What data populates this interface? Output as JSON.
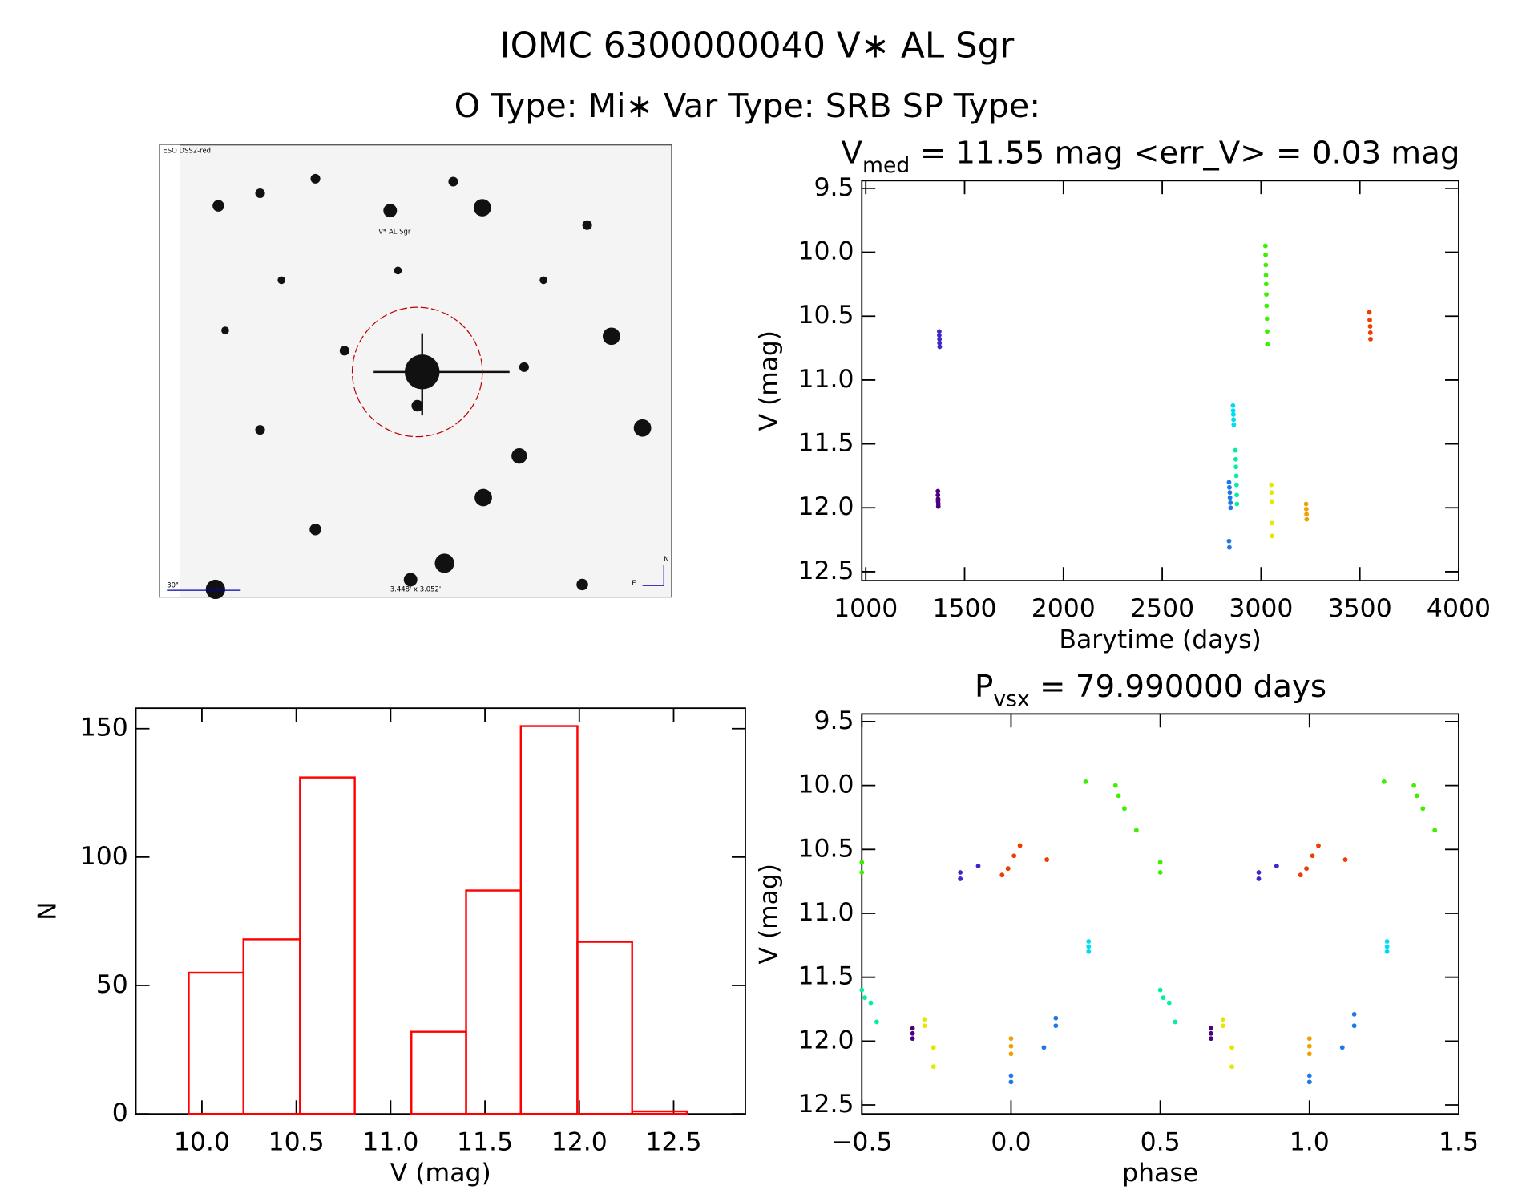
{
  "header": {
    "title": "IOMC 6300000040   V∗ AL Sgr",
    "subtitle": "O Type: Mi∗  Var Type: SRB  SP Type:"
  },
  "image": {
    "survey": "ESO DSS2-red",
    "target": "V* AL Sgr",
    "scale": "30\"",
    "fov": "3.448' x 3.052'",
    "north": "N",
    "east": "E"
  },
  "chart_data": [
    {
      "type": "histogram",
      "xlabel": "V (mag)",
      "ylabel": "N",
      "color": "#ff0000",
      "bins": [
        9.93,
        10.22,
        10.52,
        10.81,
        11.11,
        11.4,
        11.69,
        11.99,
        12.28,
        12.57
      ],
      "values": [
        55,
        68,
        131,
        0,
        32,
        87,
        151,
        67,
        1
      ],
      "xlim": [
        9.65,
        12.88
      ],
      "ylim": [
        0,
        158
      ],
      "xticks": [
        {
          "value": 10,
          "label": "10.0"
        },
        10.5,
        {
          "value": 11,
          "label": "11.0"
        },
        11.5,
        {
          "value": 12,
          "label": "12.0"
        },
        12.5
      ],
      "yticks": [
        0,
        50,
        100,
        150
      ]
    },
    {
      "type": "scatter",
      "title": [
        "V",
        "med",
        " = 11.55 mag <err_V> = 0.03 mag"
      ],
      "xlabel": "Barytime (days)",
      "ylabel": "V (mag)",
      "xlim": [
        980,
        4000
      ],
      "ylim": [
        12.57,
        9.44
      ],
      "xticks": [
        1000,
        1500,
        2000,
        2500,
        3000,
        3500,
        4000
      ],
      "yticks": [
        9.5,
        {
          "value": 10,
          "label": "10.0"
        },
        10.5,
        {
          "value": 11,
          "label": "11.0"
        },
        11.5,
        {
          "value": 12,
          "label": "12.0"
        },
        12.5
      ],
      "series": [
        {
          "color": "#4b0082",
          "x": [
            1365,
            1365,
            1366,
            1366,
            1367,
            1367
          ],
          "values": [
            11.87,
            11.9,
            11.93,
            11.95,
            11.97,
            11.99
          ]
        },
        {
          "color": "#3c28c8",
          "x": [
            1372,
            1372,
            1373,
            1373,
            1374
          ],
          "values": [
            10.62,
            10.65,
            10.68,
            10.71,
            10.74
          ]
        },
        {
          "color": "#1e78e6",
          "x": [
            2838,
            2840,
            2842,
            2843,
            2845,
            2846,
            2838,
            2840
          ],
          "values": [
            11.8,
            11.84,
            11.88,
            11.92,
            11.96,
            12.0,
            12.26,
            12.31
          ]
        },
        {
          "color": "#00dcf0",
          "x": [
            2858,
            2859,
            2860,
            2861,
            2862
          ],
          "values": [
            11.2,
            11.24,
            11.27,
            11.31,
            11.35
          ]
        },
        {
          "color": "#00f0a0",
          "x": [
            2870,
            2872,
            2873,
            2875,
            2876,
            2877,
            2878
          ],
          "values": [
            11.55,
            11.62,
            11.68,
            11.75,
            11.82,
            11.9,
            11.97
          ]
        },
        {
          "color": "#3cf000",
          "x": [
            3022,
            3023,
            3024,
            3025,
            3026,
            3027,
            3028,
            3030,
            3031,
            3032
          ],
          "values": [
            9.95,
            10.02,
            10.1,
            10.18,
            10.25,
            10.33,
            10.42,
            10.52,
            10.62,
            10.72
          ]
        },
        {
          "color": "#e6e600",
          "x": [
            3052,
            3053,
            3054,
            3055,
            3056
          ],
          "values": [
            11.82,
            11.88,
            11.95,
            12.12,
            12.22
          ]
        },
        {
          "color": "#f0a000",
          "x": [
            3228,
            3229,
            3230,
            3231
          ],
          "values": [
            11.97,
            12.01,
            12.05,
            12.09
          ]
        },
        {
          "color": "#f03c00",
          "x": [
            3548,
            3550,
            3552,
            3553,
            3554
          ],
          "values": [
            10.47,
            10.53,
            10.58,
            10.63,
            10.68
          ]
        }
      ]
    },
    {
      "type": "scatter",
      "title": [
        "P",
        "vsx",
        " = 79.990000 days"
      ],
      "xlabel": "phase",
      "ylabel": "V (mag)",
      "xlim": [
        -0.5,
        1.5
      ],
      "ylim": [
        12.57,
        9.44
      ],
      "xticks": [
        {
          "value": -0.5,
          "label": "−0.5"
        },
        {
          "value": 0,
          "label": "0.0"
        },
        0.5,
        {
          "value": 1,
          "label": "1.0"
        },
        1.5
      ],
      "yticks": [
        9.5,
        {
          "value": 10,
          "label": "10.0"
        },
        10.5,
        {
          "value": 11,
          "label": "11.0"
        },
        11.5,
        {
          "value": 12,
          "label": "12.0"
        },
        12.5
      ],
      "series": [
        {
          "color": "#4b0082",
          "x": [
            -0.33,
            -0.33,
            -0.33,
            0.67,
            0.67,
            0.67
          ],
          "values": [
            11.9,
            11.94,
            11.98,
            11.9,
            11.94,
            11.98
          ]
        },
        {
          "color": "#3c28c8",
          "x": [
            -0.17,
            -0.17,
            -0.11,
            0.83,
            0.83,
            0.89
          ],
          "values": [
            10.68,
            10.73,
            10.63,
            10.68,
            10.73,
            10.63
          ]
        },
        {
          "color": "#1e78e6",
          "x": [
            0.0,
            0.0,
            0.11,
            0.15,
            0.15,
            1.0,
            1.0,
            1.11,
            1.15,
            1.15
          ],
          "values": [
            12.27,
            12.32,
            12.05,
            11.82,
            11.88,
            12.27,
            12.32,
            12.05,
            11.79,
            11.88
          ]
        },
        {
          "color": "#00dcf0",
          "x": [
            0.26,
            0.26,
            0.26,
            1.26,
            1.26,
            1.26
          ],
          "values": [
            11.22,
            11.26,
            11.3,
            11.22,
            11.26,
            11.3
          ]
        },
        {
          "color": "#00f0a0",
          "x": [
            -0.5,
            -0.49,
            -0.47,
            -0.45,
            0.5,
            0.51,
            0.53,
            0.55
          ],
          "values": [
            11.6,
            11.66,
            11.7,
            11.85,
            11.6,
            11.66,
            11.7,
            11.85
          ]
        },
        {
          "color": "#3cf000",
          "x": [
            -0.5,
            -0.5,
            0.25,
            0.35,
            0.36,
            0.38,
            0.42,
            0.5,
            0.5,
            1.25,
            1.35,
            1.36,
            1.38,
            1.42
          ],
          "values": [
            10.6,
            10.68,
            9.97,
            10.0,
            10.08,
            10.18,
            10.35,
            10.6,
            10.68,
            9.97,
            10.0,
            10.08,
            10.18,
            10.35
          ]
        },
        {
          "color": "#e6e600",
          "x": [
            -0.29,
            -0.29,
            -0.26,
            -0.26,
            0.71,
            0.71,
            0.74,
            0.74
          ],
          "values": [
            11.83,
            11.88,
            12.05,
            12.2,
            11.83,
            11.88,
            12.05,
            12.2
          ]
        },
        {
          "color": "#f0a000",
          "x": [
            0.0,
            0.0,
            0.0,
            1.0,
            1.0,
            1.0
          ],
          "values": [
            11.98,
            12.04,
            12.1,
            11.98,
            12.04,
            12.1
          ]
        },
        {
          "color": "#f03c00",
          "x": [
            -0.03,
            -0.01,
            0.01,
            0.03,
            0.97,
            0.99,
            1.01,
            1.03,
            0.12,
            1.12
          ],
          "values": [
            10.7,
            10.65,
            10.55,
            10.47,
            10.7,
            10.65,
            10.55,
            10.47,
            10.58,
            10.58
          ]
        }
      ]
    }
  ]
}
